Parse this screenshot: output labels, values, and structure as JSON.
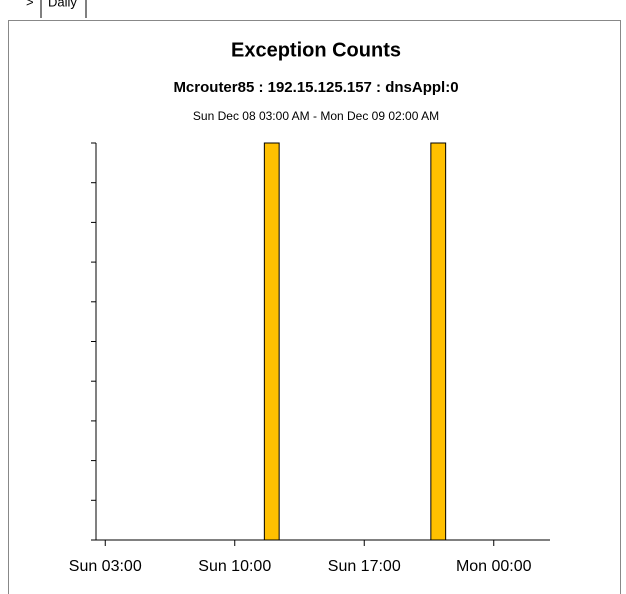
{
  "tabs": [
    ">",
    "Daily"
  ],
  "chart_data": {
    "type": "bar",
    "title": "Exception Counts",
    "subtitle": "Mcrouter85 : 192.15.125.157 : dnsAppl:0",
    "date_range": "Sun Dec 08 03:00 AM - Mon Dec 09 02:00 AM",
    "x": [
      9,
      18
    ],
    "values": [
      1,
      1
    ],
    "bar_width": 0.8,
    "color": "#ffc000",
    "xlim": [
      -0.5,
      23.5
    ],
    "xticks": [
      {
        "value": 0,
        "label": "Sun 03:00"
      },
      {
        "value": 7,
        "label": "Sun 10:00"
      },
      {
        "value": 14,
        "label": "Sun 17:00"
      },
      {
        "value": 21,
        "label": "Mon 00:00"
      }
    ],
    "ylim": [
      0,
      1
    ],
    "yticks": [
      0,
      0.1,
      0.2,
      0.3,
      0.4,
      0.5,
      0.6,
      0.7,
      0.8,
      0.9,
      1
    ],
    "ytick_labels_shown": false,
    "grid": false
  }
}
